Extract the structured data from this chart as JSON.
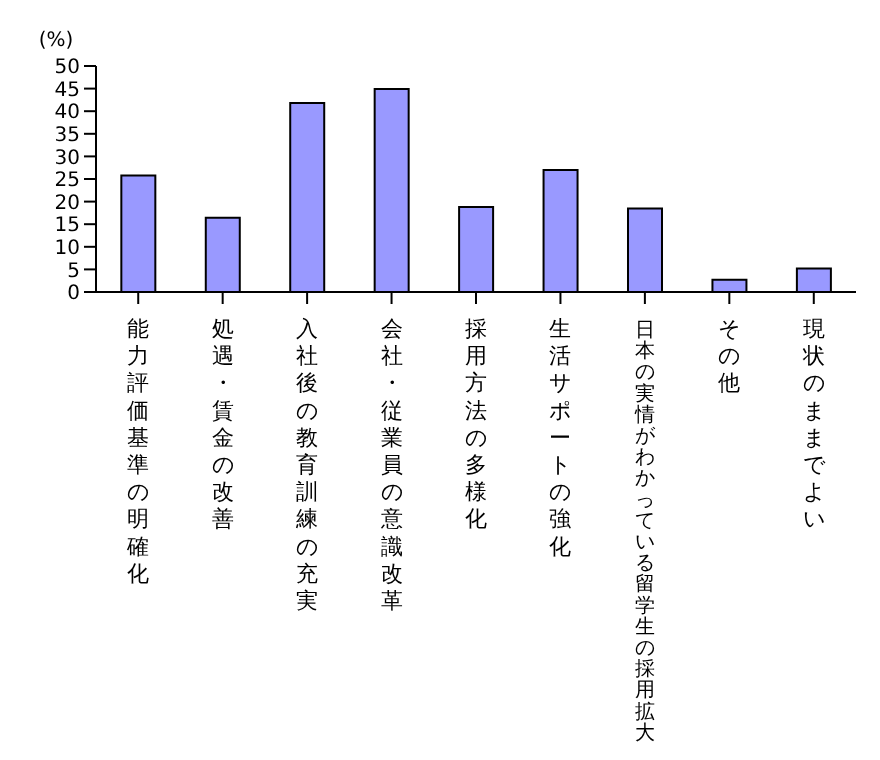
{
  "chart_data": {
    "type": "bar",
    "ylabel": "(%)",
    "categories": [
      "能力評価基準の明確化",
      "処遇・賃金の改善",
      "入社後の教育訓練の充実",
      "会社・従業員の意識改革",
      "採用方法の多様化",
      "生活サポートの強化",
      "日本の実情がわかっている留学生の採用拡大",
      "その他",
      "現状のままでよい"
    ],
    "values": [
      25.8,
      16.4,
      41.8,
      44.9,
      18.8,
      27.0,
      18.5,
      2.7,
      5.2
    ],
    "color": "#9999ff",
    "ylim": [
      0,
      50
    ],
    "yticks": [
      0,
      5,
      10,
      15,
      20,
      25,
      30,
      35,
      40,
      45,
      50
    ],
    "grid": false,
    "legend": false
  }
}
